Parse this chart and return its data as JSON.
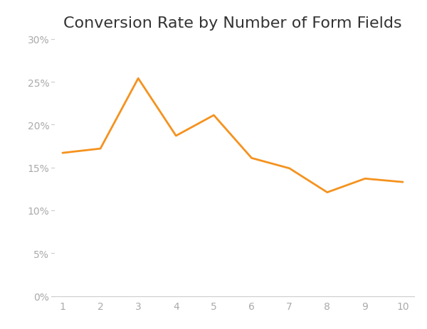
{
  "title": "Conversion Rate by Number of Form Fields",
  "x_values": [
    1,
    2,
    3,
    4,
    5,
    6,
    7,
    8,
    9,
    10
  ],
  "y_values": [
    0.167,
    0.172,
    0.254,
    0.187,
    0.211,
    0.161,
    0.149,
    0.121,
    0.137,
    0.133
  ],
  "line_color": "#F5921E",
  "line_width": 2.0,
  "background_color": "#ffffff",
  "title_fontsize": 16,
  "tick_label_color": "#aaaaaa",
  "tick_fontsize": 10,
  "ylim": [
    0,
    0.3
  ],
  "yticks": [
    0,
    0.05,
    0.1,
    0.15,
    0.2,
    0.25,
    0.3
  ],
  "xticks": [
    1,
    2,
    3,
    4,
    5,
    6,
    7,
    8,
    9,
    10
  ],
  "spine_color": "#cccccc",
  "title_color": "#333333"
}
